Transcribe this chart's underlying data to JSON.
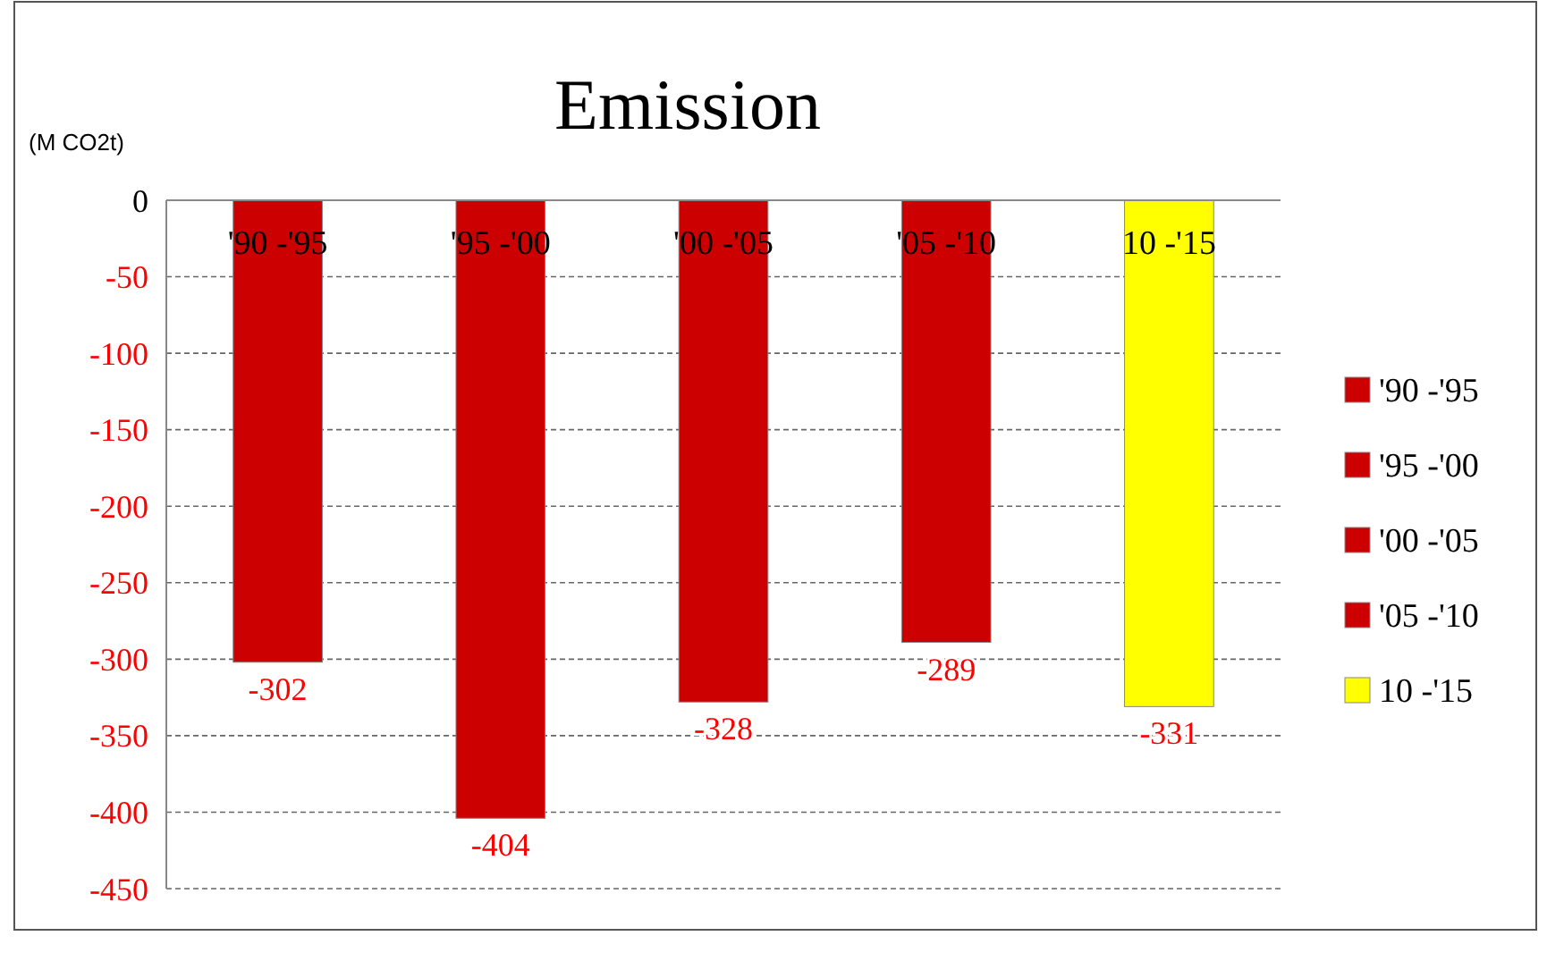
{
  "chart_data": {
    "type": "bar",
    "title": "Emission",
    "ylabel": "(M CO2t)",
    "categories": [
      "'90 -'95",
      "'95 -'00",
      "'00 -'05",
      "'05 -'10",
      "10 -'15"
    ],
    "series": [
      {
        "name": "'90 -'95",
        "color": "#cc0000",
        "values": [
          -302,
          null,
          null,
          null,
          null
        ]
      },
      {
        "name": "'95 -'00",
        "color": "#cc0000",
        "values": [
          null,
          -404,
          null,
          null,
          null
        ]
      },
      {
        "name": "'00 -'05",
        "color": "#cc0000",
        "values": [
          null,
          null,
          -328,
          null,
          null
        ]
      },
      {
        "name": "'05 -'10",
        "color": "#cc0000",
        "values": [
          null,
          null,
          null,
          -289,
          null
        ]
      },
      {
        "name": "10 -'15",
        "color": "#ffff00",
        "values": [
          null,
          null,
          null,
          null,
          -331
        ]
      }
    ],
    "ylim": [
      -450,
      0
    ],
    "yticks": [
      0,
      -50,
      -100,
      -150,
      -200,
      -250,
      -300,
      -350,
      -400,
      -450
    ],
    "grid": "y",
    "legend": "right",
    "data_labels": true
  }
}
